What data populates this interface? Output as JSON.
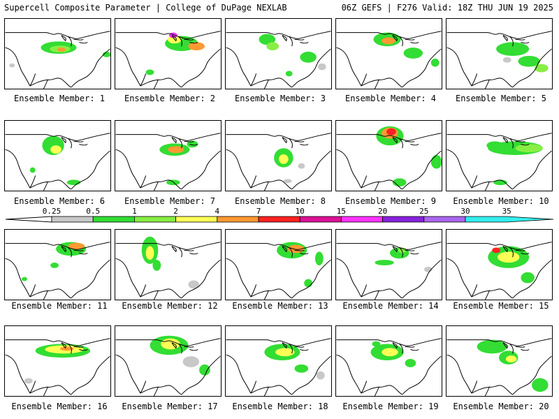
{
  "header": {
    "title": "Supercell Composite Parameter | College of DuPage NEXLAB",
    "run_info": "06Z GEFS | F276 Valid: 18Z THU JUN 19 2025"
  },
  "legend": {
    "tick_labels": [
      "0.25",
      "0.5",
      "1",
      "2",
      "4",
      "7",
      "10",
      "15",
      "20",
      "25",
      "30",
      "35"
    ],
    "bin_colors": [
      "#c8c8c8",
      "#33dd33",
      "#88ee44",
      "#ffff55",
      "#ff9933",
      "#ff2222",
      "#dd1199",
      "#ff33ff",
      "#8822dd",
      "#aa66ee",
      "#33eeee"
    ]
  },
  "panels": [
    {
      "label": "Ensemble Member: 1"
    },
    {
      "label": "Ensemble Member: 2"
    },
    {
      "label": "Ensemble Member: 3"
    },
    {
      "label": "Ensemble Member: 4"
    },
    {
      "label": "Ensemble Member: 5"
    },
    {
      "label": "Ensemble Member: 6"
    },
    {
      "label": "Ensemble Member: 7"
    },
    {
      "label": "Ensemble Member: 8"
    },
    {
      "label": "Ensemble Member: 9"
    },
    {
      "label": "Ensemble Member: 10"
    },
    {
      "label": "Ensemble Member: 11"
    },
    {
      "label": "Ensemble Member: 12"
    },
    {
      "label": "Ensemble Member: 13"
    },
    {
      "label": "Ensemble Member: 14"
    },
    {
      "label": "Ensemble Member: 15"
    },
    {
      "label": "Ensemble Member: 16"
    },
    {
      "label": "Ensemble Member: 17"
    },
    {
      "label": "Ensemble Member: 18"
    },
    {
      "label": "Ensemble Member: 19"
    },
    {
      "label": "Ensemble Member: 20"
    }
  ]
}
